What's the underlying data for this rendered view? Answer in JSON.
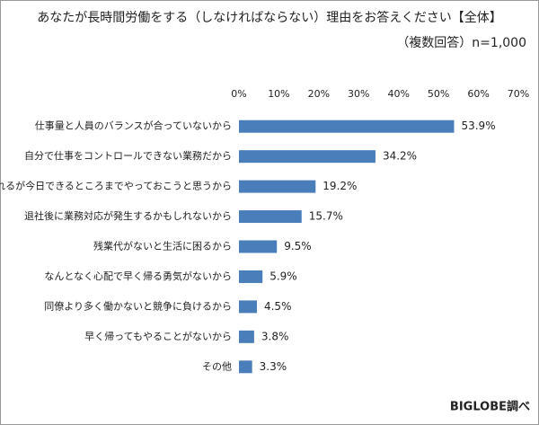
{
  "chart_data": {
    "type": "hbar",
    "title": "あなたが長時間労働をする（しなければならない）理由をお答えください【全体】",
    "subtitle": "（複数回答）n=1,000",
    "source": "BIGLOBE調べ",
    "categories": [
      "仕事量と人員のバランスが合っていないから",
      "自分で仕事をコントロールできない業務だから",
      "帰れるが今日できるところまでやっておこうと思うから",
      "退社後に業務対応が発生するかもしれないから",
      "残業代がないと生活に困るから",
      "なんとなく心配で早く帰る勇気がないから",
      "同僚より多く働かないと競争に負けるから",
      "早く帰ってもやることがないから",
      "その他"
    ],
    "values": [
      53.9,
      34.2,
      19.2,
      15.7,
      9.5,
      5.9,
      4.5,
      3.8,
      3.3
    ],
    "value_labels": [
      "53.9%",
      "34.2%",
      "19.2%",
      "15.7%",
      "9.5%",
      "5.9%",
      "4.5%",
      "3.8%",
      "3.3%"
    ],
    "color": "#4a7ebb",
    "xlim": [
      0,
      70
    ],
    "xticks": [
      {
        "value": 0,
        "label": "0%"
      },
      {
        "value": 10,
        "label": "10%"
      },
      {
        "value": 20,
        "label": "20%"
      },
      {
        "value": 30,
        "label": "30%"
      },
      {
        "value": 40,
        "label": "40%"
      },
      {
        "value": 50,
        "label": "50%"
      },
      {
        "value": 60,
        "label": "60%"
      },
      {
        "value": 70,
        "label": "70%"
      }
    ]
  }
}
